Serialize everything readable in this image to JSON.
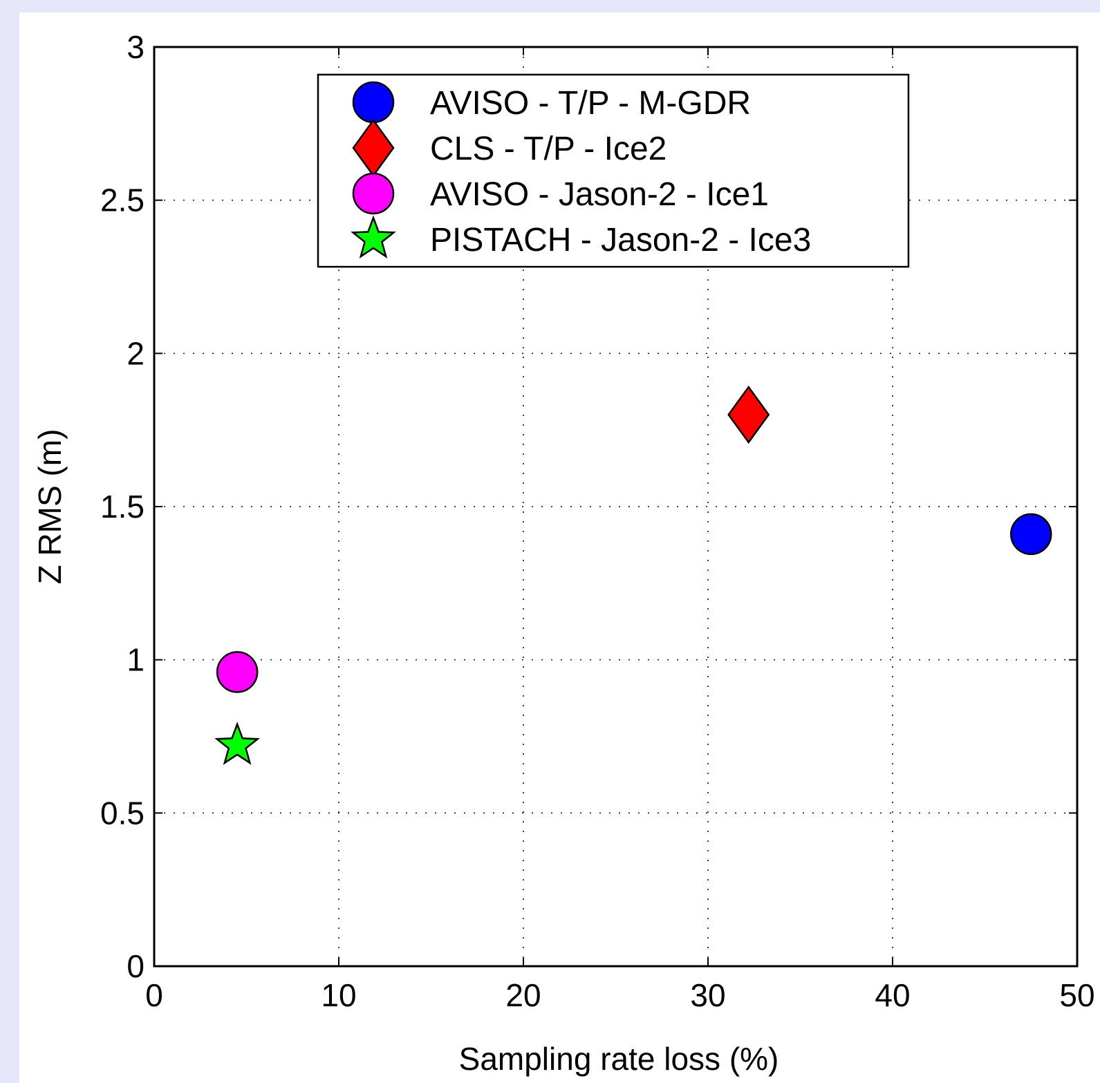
{
  "chart_data": {
    "type": "scatter",
    "title": "",
    "xlabel": "Sampling rate loss (%)",
    "ylabel": "Z RMS (m)",
    "xlim": [
      0,
      50
    ],
    "ylim": [
      0,
      3
    ],
    "xticks": [
      0,
      10,
      20,
      30,
      40,
      50
    ],
    "xtick_labels": [
      "0",
      "10",
      "20",
      "30",
      "40",
      "50"
    ],
    "yticks": [
      0,
      0.5,
      1,
      1.5,
      2,
      2.5,
      3
    ],
    "ytick_labels": [
      "0",
      "0.5",
      "1",
      "1.5",
      "2",
      "2.5",
      "3"
    ],
    "grid": true,
    "legend_position": "top-center",
    "series": [
      {
        "name": "AVISO - T/P - M-GDR",
        "marker": "circle",
        "color": "#0000ff",
        "points": [
          {
            "x": 47.5,
            "y": 1.41
          }
        ]
      },
      {
        "name": "CLS - T/P - Ice2",
        "marker": "diamond",
        "color": "#ff0000",
        "points": [
          {
            "x": 32.2,
            "y": 1.8
          }
        ]
      },
      {
        "name": "AVISO - Jason-2 - Ice1",
        "marker": "circle",
        "color": "#ff00ff",
        "points": [
          {
            "x": 4.5,
            "y": 0.96
          }
        ]
      },
      {
        "name": "PISTACH - Jason-2 - Ice3",
        "marker": "star",
        "color": "#00ff00",
        "points": [
          {
            "x": 4.5,
            "y": 0.72
          }
        ]
      }
    ]
  }
}
